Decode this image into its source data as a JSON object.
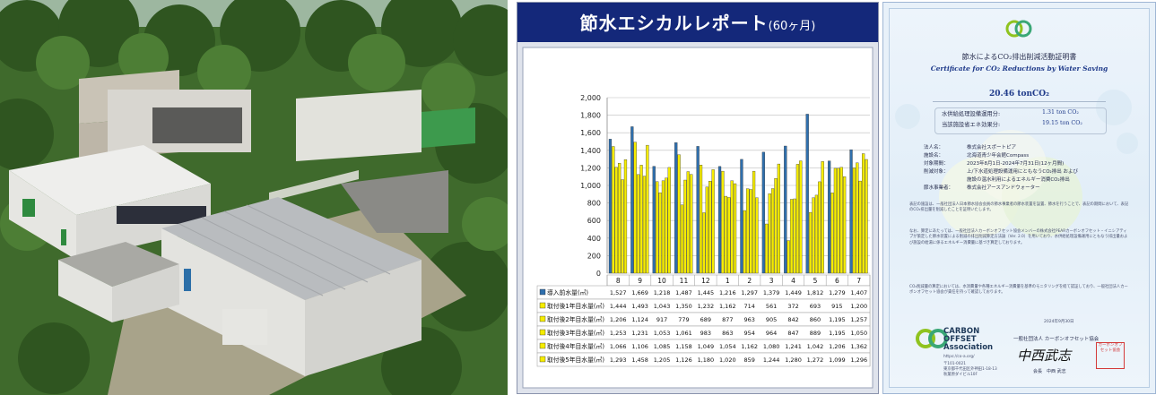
{
  "chart_panel": {
    "title": "節水エシカルレポート",
    "title_suffix": "(60ヶ月)",
    "colors": {
      "header_bg": "#14287a",
      "before": "#2f6fad",
      "after": "#f5ec00",
      "plot_bg": "#ffffff",
      "grid": "#bdbdbd"
    }
  },
  "chart_data": {
    "type": "bar",
    "categories": [
      "8",
      "9",
      "10",
      "11",
      "12",
      "1",
      "2",
      "3",
      "4",
      "5",
      "6",
      "7"
    ],
    "ylim": [
      0,
      2000
    ],
    "yticks": [
      "2,000",
      "1,800",
      "1,600",
      "1,400",
      "1,200",
      "1,000",
      "800",
      "600",
      "400",
      "200",
      "0"
    ],
    "series": [
      {
        "name": "導入前水量(㎥)",
        "color": "#2f6fad",
        "values": [
          1527,
          1669,
          1218,
          1487,
          1445,
          1216,
          1297,
          1379,
          1449,
          1812,
          1279,
          1407
        ],
        "labels": [
          "1,527",
          "1,669",
          "1,218",
          "1,487",
          "1,445",
          "1,216",
          "1,297",
          "1,379",
          "1,449",
          "1,812",
          "1,279",
          "1,407"
        ]
      },
      {
        "name": "取付後1年目水量(㎥)",
        "color": "#f5ec00",
        "values": [
          1444,
          1493,
          1043,
          1350,
          1232,
          1162,
          714,
          561,
          372,
          693,
          915,
          1200
        ],
        "labels": [
          "1,444",
          "1,493",
          "1,043",
          "1,350",
          "1,232",
          "1,162",
          "714",
          "561",
          "372",
          "693",
          "915",
          "1,200"
        ]
      },
      {
        "name": "取付後2年目水量(㎥)",
        "color": "#f5ec00",
        "values": [
          1206,
          1124,
          917,
          779,
          689,
          877,
          963,
          905,
          842,
          860,
          1195,
          1257
        ],
        "labels": [
          "1,206",
          "1,124",
          "917",
          "779",
          "689",
          "877",
          "963",
          "905",
          "842",
          "860",
          "1,195",
          "1,257"
        ]
      },
      {
        "name": "取付後3年目水量(㎥)",
        "color": "#f5ec00",
        "values": [
          1253,
          1231,
          1053,
          1061,
          983,
          863,
          954,
          964,
          847,
          889,
          1195,
          1050
        ],
        "labels": [
          "1,253",
          "1,231",
          "1,053",
          "1,061",
          "983",
          "863",
          "954",
          "964",
          "847",
          "889",
          "1,195",
          "1,050"
        ]
      },
      {
        "name": "取付後4年目水量(㎥)",
        "color": "#f5ec00",
        "values": [
          1066,
          1106,
          1085,
          1158,
          1049,
          1054,
          1162,
          1080,
          1241,
          1042,
          1206,
          1362
        ],
        "labels": [
          "1,066",
          "1,106",
          "1,085",
          "1,158",
          "1,049",
          "1,054",
          "1,162",
          "1,080",
          "1,241",
          "1,042",
          "1,206",
          "1,362"
        ]
      },
      {
        "name": "取付後5年目水量(㎥)",
        "color": "#f5ec00",
        "values": [
          1293,
          1458,
          1205,
          1126,
          1180,
          1020,
          859,
          1244,
          1280,
          1272,
          1099,
          1296
        ],
        "labels": [
          "1,293",
          "1,458",
          "1,205",
          "1,126",
          "1,180",
          "1,020",
          "859",
          "1,244",
          "1,280",
          "1,272",
          "1,099",
          "1,296"
        ]
      }
    ]
  },
  "certificate": {
    "title": "節水によるCO₂排出削減活動証明書",
    "subtitle": "Certificate for CO₂ Reductions by Water Saving",
    "total": "20.46 tonCO₂",
    "rows": [
      {
        "label": "水供給処理設備運用分:",
        "value": "1.31 ton CO₂"
      },
      {
        "label": "当該施設省エネ効果分:",
        "value": "19.15 ton CO₂"
      }
    ],
    "details": [
      {
        "label": "法人名：",
        "value": "株式会社スポートピア"
      },
      {
        "label": "施設名：",
        "value": "北海道青少年会館Compass"
      },
      {
        "label": "対象期間：",
        "value": "2023年8月1日-2024年7月31日(12ヶ月間)"
      },
      {
        "label": "削減対象：",
        "value": "上/下水道処理設備運用にともなうCO₂排出 および"
      },
      {
        "label": "",
        "value": "施設の温水利用によるエネルギー消費CO₂排出"
      },
      {
        "label": "節水事業者：",
        "value": "株式会社アースアンドウォーター"
      }
    ],
    "para1": "表記の施設は、一般社団法人日本節水協会会員の節水事業者の節水装置を設置、節水を行うことで、表記の期間において、表記のCO₂排出量を削減したことを証明いたします。",
    "para2": "なお、算定にあたっては、一般社団法人カーボンオフセット協会メンバーの株式会社PEARカーボンオフセット・イニシアティブが策定した節水装置による削減の排出削減算定方法論（Ver. 2.0）を用いており、水供給処理設備運用にともなう排出量および施設の給湯に係るエネルギー消費量に基づき算定しております。",
    "para3": "CO₂削減量の算定においては、水消費量や各種エネルギー消費量を基準のモニタリングを経て認証しており、一般社団法人カーボンオフセット協会が責任を持って確認しております。",
    "logo_line1": "CARBON",
    "logo_line2": "OFFSET",
    "logo_line3": "Association",
    "logo_url": "https://co-a.org/",
    "address1": "〒101-0021",
    "address2": "東京都千代田区外神田1-18-13",
    "address3": "秋葉原ダイビル10F",
    "date": "2024年9月30日",
    "org": "一般社団法人 カーボンオフセット協会",
    "signature": "中西武志",
    "signer": "会長　中西 武志",
    "seal_text": "カーボンオフセット協会"
  }
}
